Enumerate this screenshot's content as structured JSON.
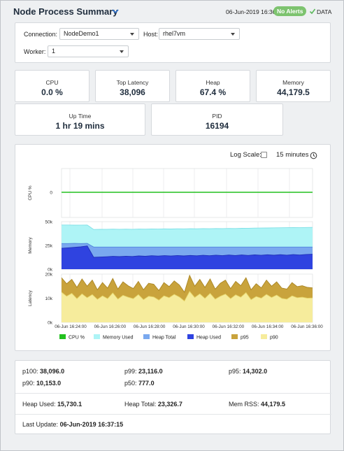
{
  "header": {
    "title": "Node Process Summary",
    "timestamp": "06-Jun-2019 16:36",
    "alert_badge": "No Alerts",
    "data_label": "DATA"
  },
  "filters": {
    "connection_label": "Connection:",
    "connection_value": "NodeDemo1",
    "host_label": "Host:",
    "host_value": "rhel7vm",
    "worker_label": "Worker:",
    "worker_value": "1"
  },
  "kpis": [
    {
      "label": "CPU",
      "value": "0.0 %"
    },
    {
      "label": "Top Latency",
      "value": "38,096"
    },
    {
      "label": "Heap",
      "value": "67.4 %"
    },
    {
      "label": "Memory",
      "value": "44,179.5"
    },
    {
      "label": "Up Time",
      "value": "1 hr 19 mins"
    },
    {
      "label": "PID",
      "value": "16194"
    }
  ],
  "chart_controls": {
    "log_scale_label": "Log Scale:",
    "log_scale_checked": false,
    "time_range": "15 minutes"
  },
  "colors": {
    "cpu": "#22c11f",
    "memory_used": "#aef4f6",
    "heap_total": "#7aa9ef",
    "heap_used": "#2f43e0",
    "p95": "#c9a33c",
    "p90": "#f6ec9c",
    "badge": "#7dc36f"
  },
  "chart_data": {
    "type": "area",
    "x_ticks": [
      "06-Jun 16:24:00",
      "06-Jun 16:26:00",
      "06-Jun 16:28:00",
      "06-Jun 16:30:00",
      "06-Jun 16:32:00",
      "06-Jun 16:34:00",
      "06-Jun 16:36:00"
    ],
    "legend": [
      "CPU %",
      "Memory Used",
      "Heap Total",
      "Heap Used",
      "p95",
      "p90"
    ],
    "panels": [
      {
        "ylabel": "CPU %",
        "yticks": [
          "0"
        ],
        "series": [
          {
            "name": "CPU %",
            "values": [
              0,
              0
            ]
          }
        ]
      },
      {
        "ylabel": "Memory",
        "yticks": [
          "50k",
          "25k",
          "0k"
        ],
        "ylim": [
          0,
          50000
        ],
        "series": [
          {
            "name": "Memory Used",
            "values": [
              46500,
              46500,
              46300,
              46400,
              46500,
              41800,
              41900,
              42000,
              42100,
              42000,
              42100,
              42000,
              42200,
              42100,
              42300,
              42200,
              42400,
              42300,
              42500,
              42400,
              42600,
              42500,
              42700,
              42600,
              42800,
              42700,
              42900,
              42800,
              43000,
              43100,
              43200,
              43300,
              43400,
              43500,
              43600,
              43700,
              43800,
              43700,
              43900,
              44000
            ]
          },
          {
            "name": "Heap Total",
            "values": [
              27000,
              27000,
              27100,
              27000,
              27100,
              23300,
              23300,
              23300,
              23300,
              23300,
              23300,
              23300,
              23300,
              23300,
              23300,
              23300,
              23300,
              23300,
              23300,
              23300,
              23300,
              23300,
              23300,
              23300,
              23300,
              23300,
              23300,
              23300,
              23300,
              23300,
              23300,
              23300,
              23300,
              23300,
              23300,
              23300,
              23300,
              23300,
              23300,
              23300
            ]
          },
          {
            "name": "Heap Used",
            "values": [
              22000,
              22500,
              23000,
              23500,
              24500,
              12500,
              12800,
              13100,
              13500,
              13200,
              13700,
              13400,
              14000,
              13600,
              14200,
              13800,
              14300,
              13900,
              14400,
              14000,
              14500,
              14100,
              14600,
              14200,
              14800,
              14300,
              14900,
              14400,
              15000,
              14500,
              15100,
              14600,
              15200,
              14700,
              15300,
              14800,
              15400,
              14900,
              15500,
              15700
            ]
          }
        ]
      },
      {
        "ylabel": "Latency",
        "yticks": [
          "20k",
          "10k",
          "0k"
        ],
        "ylim": [
          0,
          20000
        ],
        "series": [
          {
            "name": "p95",
            "values": [
              18500,
              16000,
              17800,
              14500,
              18000,
              15000,
              17500,
              13500,
              16500,
              14200,
              18200,
              13800,
              16800,
              15200,
              14000,
              17000,
              13500,
              16200,
              15800,
              13200,
              16500,
              14800,
              17200,
              15500,
              12500,
              19500,
              15000,
              17800,
              14500,
              18000,
              13800,
              16200,
              17500,
              14000,
              17000,
              15200,
              18500,
              13500,
              16000,
              14300,
              17500,
              15000,
              16800,
              14200,
              13800,
              16500,
              14800,
              15200,
              14500,
              14300
            ]
          },
          {
            "name": "p90",
            "values": [
              12500,
              10800,
              12000,
              9800,
              11800,
              10200,
              11500,
              9500,
              11000,
              9800,
              12200,
              9600,
              11200,
              10400,
              9800,
              11500,
              9400,
              10800,
              10500,
              9200,
              11000,
              10200,
              11600,
              10500,
              8800,
              12800,
              10300,
              11800,
              9900,
              12000,
              9600,
              10800,
              11700,
              9800,
              11400,
              10400,
              12300,
              9400,
              10700,
              10000,
              11600,
              10300,
              11300,
              9900,
              9600,
              11000,
              10200,
              10400,
              10000,
              10100
            ]
          }
        ]
      }
    ]
  },
  "stats": {
    "p100_label": "p100:",
    "p100_value": "38,096.0",
    "p99_label": "p99:",
    "p99_value": "23,116.0",
    "p95_label": "p95:",
    "p95_value": "14,302.0",
    "p90_label": "p90:",
    "p90_value": "10,153.0",
    "p50_label": "p50:",
    "p50_value": "777.0",
    "heap_used_label": "Heap Used:",
    "heap_used_value": "15,730.1",
    "heap_total_label": "Heap Total:",
    "heap_total_value": "23,326.7",
    "mem_rss_label": "Mem RSS:",
    "mem_rss_value": "44,179.5",
    "last_update_label": "Last Update:",
    "last_update_value": "06-Jun-2019 16:37:15"
  }
}
